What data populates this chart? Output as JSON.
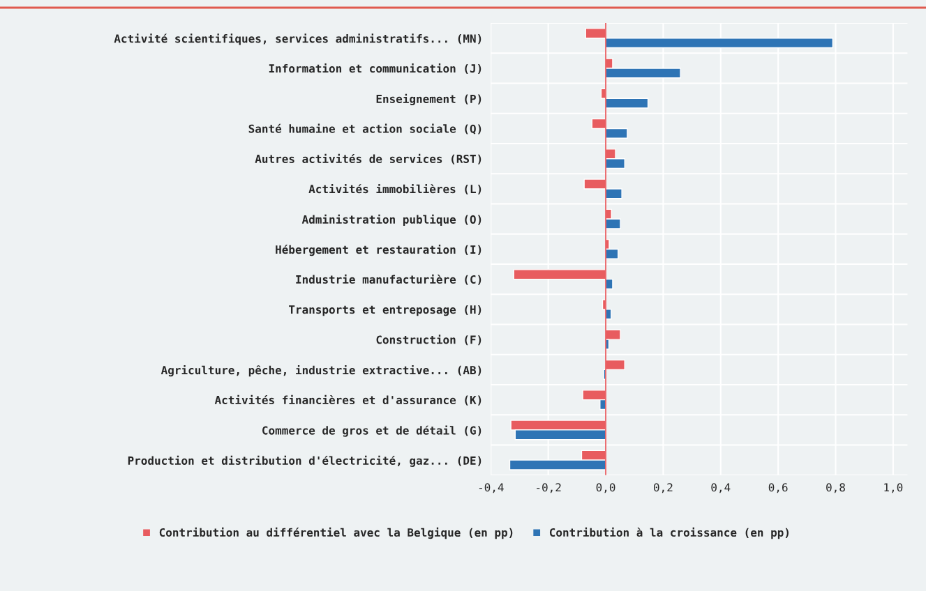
{
  "chart_data": {
    "type": "bar",
    "orientation": "horizontal",
    "categories": [
      "Activité scientifiques, services administratifs... (MN)",
      "Information et communication (J)",
      "Enseignement (P)",
      "Santé humaine et action sociale (Q)",
      "Autres activités de services (RST)",
      "Activités immobilières (L)",
      "Administration publique (O)",
      "Hébergement et restauration (I)",
      "Industrie manufacturière (C)",
      "Transports et entreposage (H)",
      "Construction (F)",
      "Agriculture, pêche, industrie extractive... (AB)",
      "Activités financières et d'assurance (K)",
      "Commerce de gros et de détail (G)",
      "Production et distribution d'électricité, gaz... (DE)"
    ],
    "series": [
      {
        "name": "Contribution au différentiel avec la Belgique (en pp)",
        "color": "#e85c5f",
        "values": [
          -0.07,
          0.024,
          -0.016,
          -0.048,
          0.034,
          -0.075,
          0.02,
          0.012,
          -0.32,
          -0.011,
          0.051,
          0.066,
          -0.08,
          -0.33,
          -0.084
        ]
      },
      {
        "name": "Contribution à la croissance (en pp)",
        "color": "#2e74b5",
        "values": [
          0.79,
          0.26,
          0.147,
          0.075,
          0.066,
          0.056,
          0.051,
          0.043,
          0.024,
          0.019,
          0.011,
          -0.007,
          -0.02,
          -0.315,
          -0.334
        ]
      }
    ],
    "xlim": [
      -0.4,
      1.05
    ],
    "xticks": [
      {
        "value": -0.4,
        "label": "-0,4"
      },
      {
        "value": -0.2,
        "label": "-0,2"
      },
      {
        "value": 0.0,
        "label": "0,0"
      },
      {
        "value": 0.2,
        "label": "0,2"
      },
      {
        "value": 0.4,
        "label": "0,4"
      },
      {
        "value": 0.6,
        "label": "0,6"
      },
      {
        "value": 0.8,
        "label": "0,8"
      },
      {
        "value": 1.0,
        "label": "1,0"
      }
    ],
    "ref_lines": [
      {
        "axis": "x",
        "value": 0,
        "color": "#e85c5f"
      }
    ],
    "grid": true,
    "legend": "bottom"
  }
}
